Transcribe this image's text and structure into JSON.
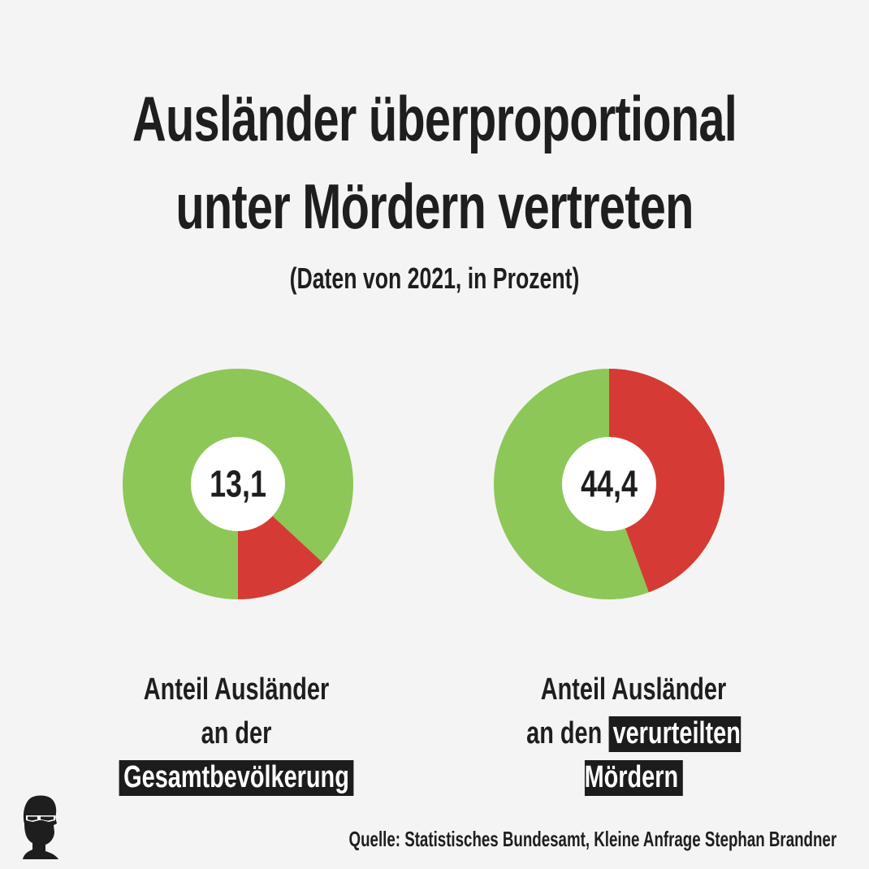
{
  "title_line1": "Ausländer überproportional",
  "title_line2": "unter Mördern vertreten",
  "subtitle": "(Daten von 2021, in Prozent)",
  "colors": {
    "green": "#8dc757",
    "red": "#d63a35",
    "hole": "#ffffff"
  },
  "chart_data": [
    {
      "type": "pie",
      "values": [
        13.1,
        86.9
      ],
      "center_label": "13,1",
      "caption_line1": "Anteil Ausländer",
      "caption_prefix": "an der",
      "caption_highlight": "Gesamtbevölkerung"
    },
    {
      "type": "pie",
      "values": [
        44.4,
        55.6
      ],
      "center_label": "44,4",
      "caption_line1": "Anteil Ausländer",
      "caption_prefix": "an den",
      "caption_highlight": "verurteilten Mördern"
    }
  ],
  "source": "Quelle: Statistisches Bundesamt, Kleine Anfrage Stephan Brandner"
}
